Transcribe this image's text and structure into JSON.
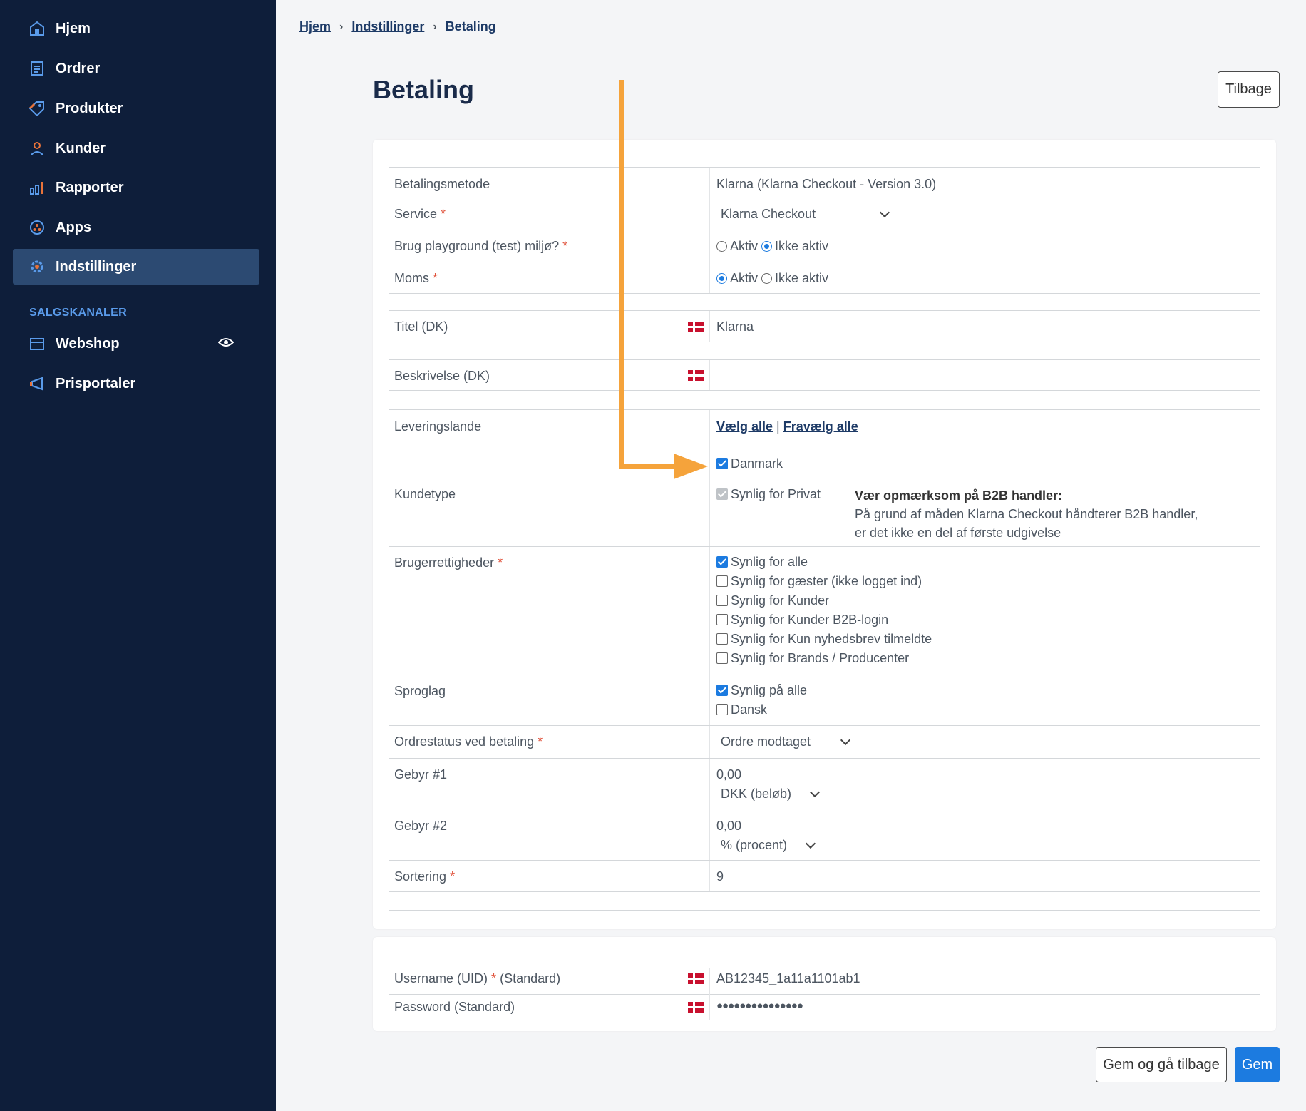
{
  "sidebar": {
    "items": [
      {
        "label": "Hjem",
        "icon": "home-icon"
      },
      {
        "label": "Ordrer",
        "icon": "orders-icon"
      },
      {
        "label": "Produkter",
        "icon": "tag-icon"
      },
      {
        "label": "Kunder",
        "icon": "user-icon"
      },
      {
        "label": "Rapporter",
        "icon": "bar-chart-icon"
      },
      {
        "label": "Apps",
        "icon": "apps-icon"
      },
      {
        "label": "Indstillinger",
        "icon": "gear-icon",
        "active": true
      }
    ],
    "section_label": "SALGSKANALER",
    "channels": [
      {
        "label": "Webshop",
        "icon": "shop-icon"
      },
      {
        "label": "Prisportaler",
        "icon": "megaphone-icon"
      }
    ]
  },
  "breadcrumb": {
    "home": "Hjem",
    "settings": "Indstillinger",
    "current": "Betaling"
  },
  "page_title": "Betaling",
  "buttons": {
    "back": "Tilbage",
    "save_back": "Gem og gå tilbage",
    "save": "Gem"
  },
  "form": {
    "payment_method": {
      "label": "Betalingsmetode",
      "value": "Klarna (Klarna Checkout - Version 3.0)"
    },
    "service": {
      "label": "Service",
      "value": "Klarna Checkout"
    },
    "playground": {
      "label": "Brug playground (test) miljø?",
      "opt_on": "Aktiv",
      "opt_off": "Ikke aktiv"
    },
    "vat": {
      "label": "Moms",
      "opt_on": "Aktiv",
      "opt_off": "Ikke aktiv"
    },
    "title": {
      "label": "Titel (DK)",
      "value": "Klarna"
    },
    "description": {
      "label": "Beskrivelse (DK)",
      "value": ""
    },
    "delivery": {
      "label": "Leveringslande",
      "select_all": "Vælg alle",
      "separator": "|",
      "deselect_all": "Fravælg alle",
      "country": "Danmark"
    },
    "customer_type": {
      "label": "Kundetype",
      "value": "Synlig for Privat",
      "note_title": "Vær opmærksom på B2B handler:",
      "note_line1": "På grund af måden Klarna Checkout håndterer B2B handler,",
      "note_line2": "er det ikke en del af første udgivelse"
    },
    "permissions": {
      "label": "Brugerrettigheder",
      "options": [
        "Synlig for alle",
        "Synlig for gæster (ikke logget ind)",
        "Synlig for Kunder",
        "Synlig for Kunder B2B-login",
        "Synlig for Kun nyhedsbrev tilmeldte",
        "Synlig for Brands / Producenter"
      ]
    },
    "languages": {
      "label": "Sproglag",
      "options": [
        "Synlig på alle",
        "Dansk"
      ]
    },
    "order_status": {
      "label": "Ordrestatus ved betaling",
      "value": "Ordre modtaget"
    },
    "fee1": {
      "label": "Gebyr #1",
      "amount": "0,00",
      "unit": "DKK (beløb)"
    },
    "fee2": {
      "label": "Gebyr #2",
      "amount": "0,00",
      "unit": "% (procent)"
    },
    "sorting": {
      "label": "Sortering",
      "value": "9"
    }
  },
  "credentials": {
    "username": {
      "label": "Username (UID)",
      "suffix": "(Standard)",
      "value": "AB12345_1a11a1101ab1"
    },
    "password": {
      "label": "Password (Standard)",
      "value": "●●●●●●●●●●●●●●●"
    }
  },
  "required_mark": "*",
  "colors": {
    "sidebar": "#0e1e3a",
    "active": "#2c4a72",
    "primary": "#1c7be0",
    "arrow": "#f5a33b",
    "accent_icon": "#5a9bea"
  }
}
